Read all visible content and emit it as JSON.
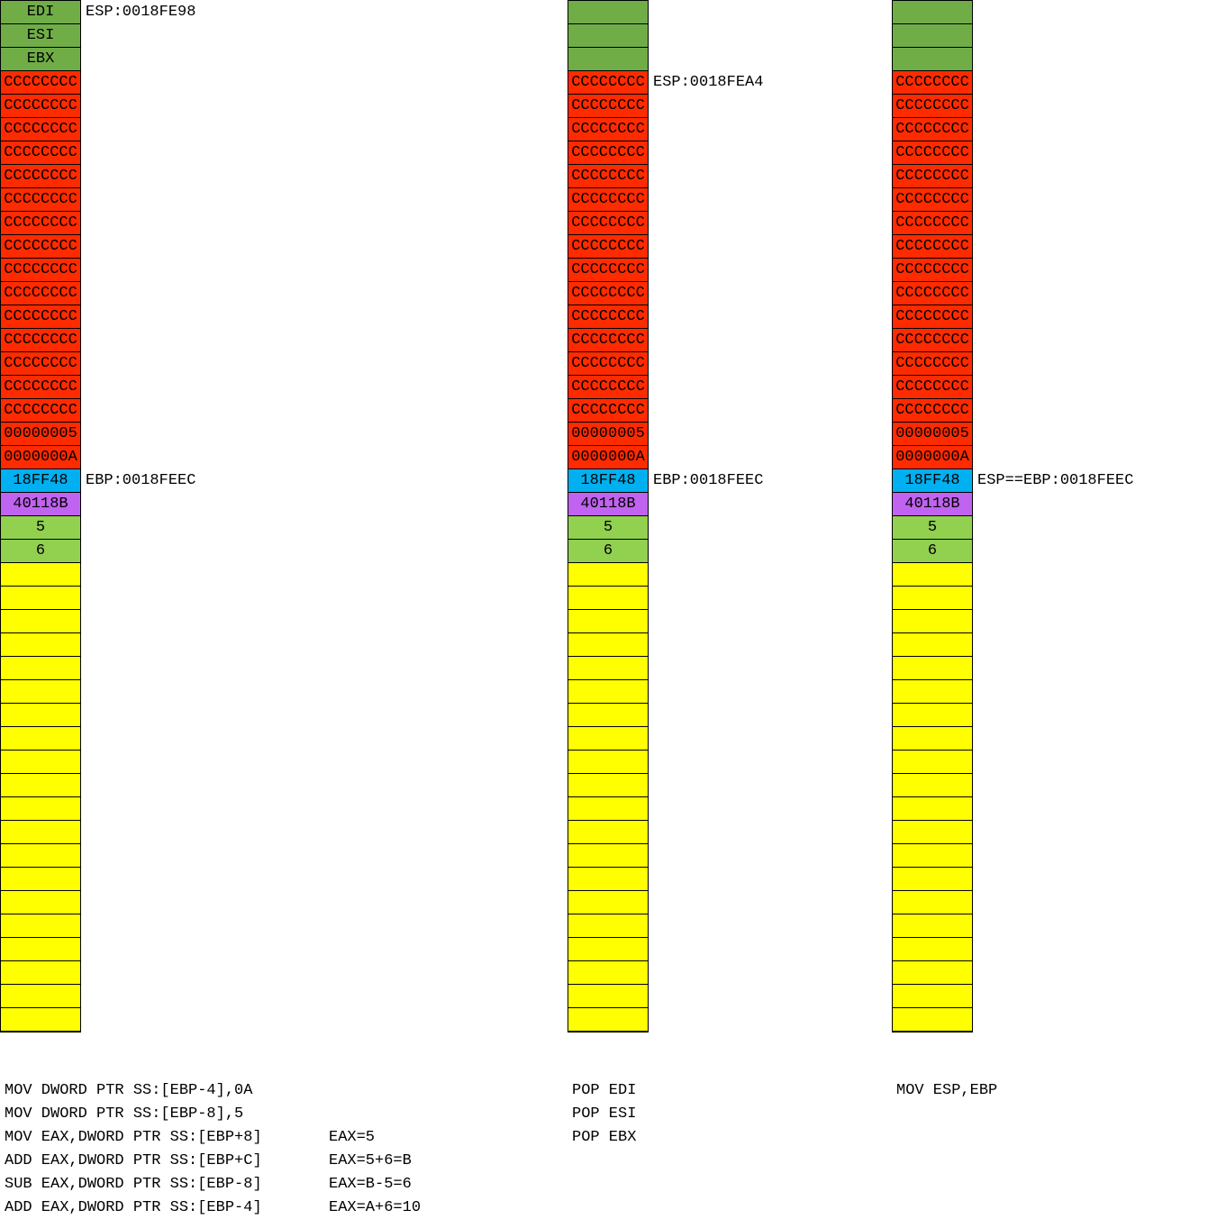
{
  "colors": {
    "header_green": "#70AD47",
    "red": "#FF2B00",
    "blue": "#00B0F0",
    "purple": "#C063F0",
    "light_green": "#92D050",
    "yellow": "#FFFF00",
    "marker_green": "#1E7044",
    "border": "#000000"
  },
  "stack_columns": [
    {
      "title": "stage-after-locals-init",
      "header_cells": [
        "EDI",
        "ESI",
        "EBX"
      ],
      "cc_text": "CCCCCCCC",
      "cc_count": 15,
      "value_cells": [
        {
          "text": "00000005",
          "color": "red",
          "marker": true
        },
        {
          "text": "0000000A",
          "color": "red",
          "marker": false
        },
        {
          "text": "18FF48",
          "color": "blue",
          "marker": false
        },
        {
          "text": "40118B",
          "color": "purple",
          "marker": false
        },
        {
          "text": "5",
          "color": "light_green",
          "marker": true
        },
        {
          "text": "6",
          "color": "light_green",
          "marker": true
        }
      ],
      "yellow_count": 20,
      "labels": [
        {
          "row_index": 0,
          "text": "ESP:0018FE98"
        },
        {
          "row_index": 20,
          "text": "EBP:0018FEEC"
        }
      ],
      "code_lines": [
        {
          "asm": "MOV DWORD PTR SS:[EBP-4],0A",
          "remark": ""
        },
        {
          "asm": "MOV DWORD PTR SS:[EBP-8],5",
          "remark": ""
        },
        {
          "asm": "MOV EAX,DWORD PTR SS:[EBP+8]",
          "remark": "EAX=5"
        },
        {
          "asm": "ADD EAX,DWORD PTR SS:[EBP+C]",
          "remark": "EAX=5+6=B"
        },
        {
          "asm": "SUB EAX,DWORD PTR SS:[EBP-8]",
          "remark": "EAX=B-5=6"
        },
        {
          "asm": "ADD EAX,DWORD PTR SS:[EBP-4]",
          "remark": "EAX=A+6=10"
        }
      ]
    },
    {
      "title": "stage-after-pops",
      "header_cells": [
        "",
        "",
        ""
      ],
      "cc_text": "CCCCCCCC",
      "cc_count": 15,
      "value_cells": [
        {
          "text": "00000005",
          "color": "red",
          "marker": true
        },
        {
          "text": "0000000A",
          "color": "red",
          "marker": false
        },
        {
          "text": "18FF48",
          "color": "blue",
          "marker": false
        },
        {
          "text": "40118B",
          "color": "purple",
          "marker": false
        },
        {
          "text": "5",
          "color": "light_green",
          "marker": true
        },
        {
          "text": "6",
          "color": "light_green",
          "marker": true
        }
      ],
      "yellow_count": 20,
      "labels": [
        {
          "row_index": 3,
          "text": "ESP:0018FEA4"
        },
        {
          "row_index": 20,
          "text": "EBP:0018FEEC"
        }
      ],
      "code_lines": [
        {
          "asm": "POP EDI",
          "remark": ""
        },
        {
          "asm": "POP ESI",
          "remark": ""
        },
        {
          "asm": "POP EBX",
          "remark": ""
        }
      ]
    },
    {
      "title": "stage-after-mov-esp-ebp",
      "header_cells": [
        "",
        "",
        ""
      ],
      "cc_text": "CCCCCCCC",
      "cc_count": 15,
      "value_cells": [
        {
          "text": "00000005",
          "color": "red",
          "marker": true
        },
        {
          "text": "0000000A",
          "color": "red",
          "marker": false
        },
        {
          "text": "18FF48",
          "color": "blue",
          "marker": false
        },
        {
          "text": "40118B",
          "color": "purple",
          "marker": false
        },
        {
          "text": "5",
          "color": "light_green",
          "marker": true
        },
        {
          "text": "6",
          "color": "light_green",
          "marker": true
        }
      ],
      "yellow_count": 20,
      "labels": [
        {
          "row_index": 20,
          "text": "ESP==EBP:0018FEEC"
        }
      ],
      "code_lines": [
        {
          "asm": "MOV ESP,EBP",
          "remark": ""
        }
      ]
    }
  ]
}
